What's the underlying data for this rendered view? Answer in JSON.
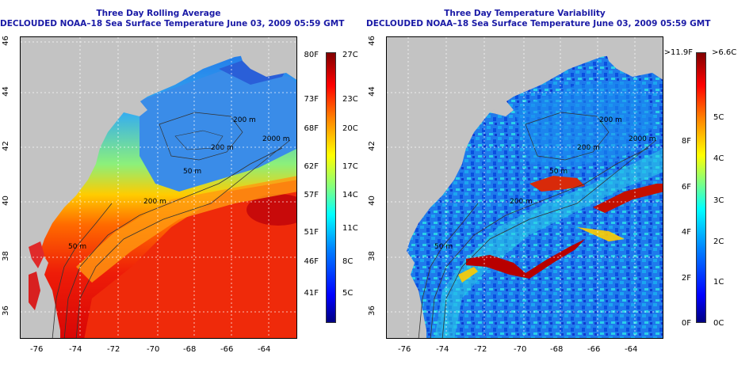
{
  "left_panel": {
    "title_line1": "Three Day Rolling Average",
    "title_line2": "DECLOUDED NOAA–18 Sea Surface Temperature June 03, 2009 05:59 GMT",
    "contour_labels": [
      "200 m",
      "2000 m",
      "200 m",
      "50 m",
      "200 m",
      "50 m"
    ],
    "colorbar": {
      "fahrenheit": [
        "80F",
        "73F",
        "68F",
        "62F",
        "57F",
        "51F",
        "46F",
        "41F"
      ],
      "celsius": [
        "27C",
        "23C",
        "20C",
        "17C",
        "14C",
        "11C",
        "8C",
        "5C"
      ]
    }
  },
  "right_panel": {
    "title_line1": "Three Day Temperature Variability",
    "title_line2": "DECLOUDED NOAA–18 Sea Surface Temperature June 03, 2009 05:59 GMT",
    "contour_labels": [
      "200 m",
      "2000 m",
      "200 m",
      "50 m",
      "200 m",
      "50 m"
    ],
    "colorbar": {
      "fahrenheit": [
        ">11.9F",
        "8F",
        "6F",
        "4F",
        "2F",
        "0F"
      ],
      "celsius": [
        ">6.6C",
        "5C",
        "4C",
        "3C",
        "2C",
        "1C",
        "0C"
      ]
    }
  },
  "axes": {
    "x_ticks": [
      "-76",
      "-74",
      "-72",
      "-70",
      "-68",
      "-66",
      "-64"
    ],
    "y_ticks": [
      "46",
      "44",
      "42",
      "40",
      "38",
      "36"
    ]
  },
  "colors": {
    "title": "#1a1aa6",
    "land": "#c3c3c3"
  }
}
